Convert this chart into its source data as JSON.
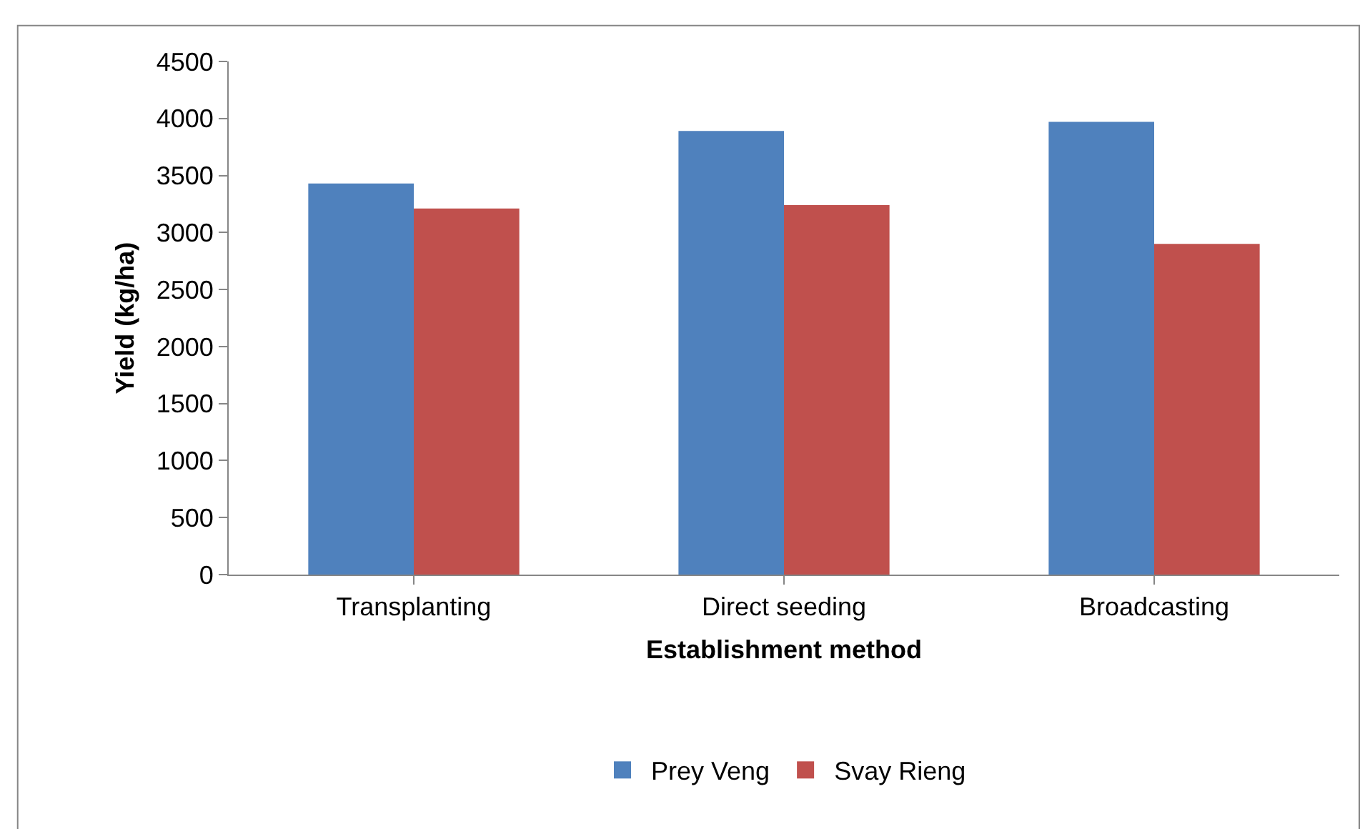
{
  "chart_data": {
    "type": "bar",
    "xlabel": "Establishment method",
    "ylabel": "Yield (kg/ha)",
    "categories": [
      "Transplanting",
      "Direct seeding",
      "Broadcasting"
    ],
    "series": [
      {
        "name": "Prey Veng",
        "color": "#4f81bd",
        "values": [
          3430,
          3890,
          3970
        ]
      },
      {
        "name": "Svay Rieng",
        "color": "#c0504d",
        "values": [
          3210,
          3240,
          2900
        ]
      }
    ],
    "ylim": [
      0,
      4500
    ],
    "yticks": [
      0,
      500,
      1000,
      1500,
      2000,
      2500,
      3000,
      3500,
      4000,
      4500
    ],
    "grid": false,
    "legend": "bottom"
  }
}
